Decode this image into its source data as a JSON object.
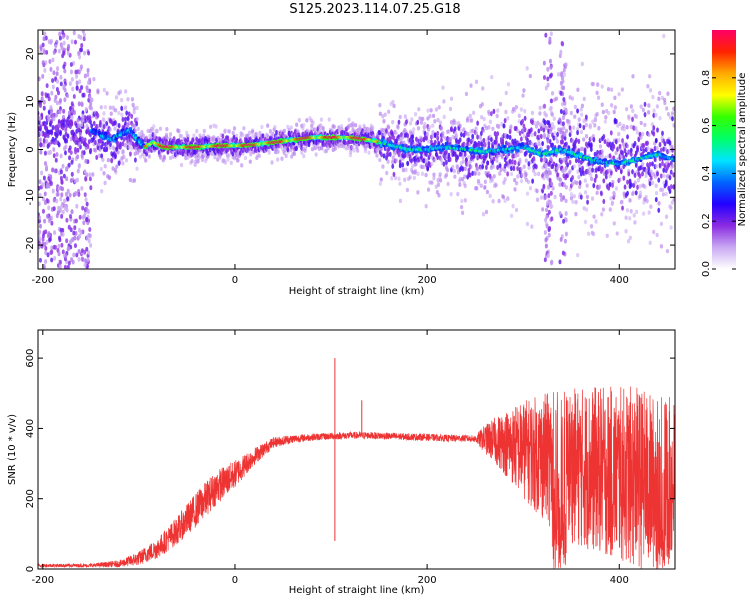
{
  "title": "S125.2023.114.07.25.G18",
  "chart_data": [
    {
      "type": "heatmap",
      "name": "spectrogram",
      "xlabel": "Height of straight line (km)",
      "ylabel": "Frequency (Hz)",
      "xlim": [
        -205,
        458
      ],
      "ylim": [
        -25,
        25
      ],
      "xticks": [
        -200,
        0,
        200,
        400
      ],
      "yticks": [
        -20,
        -10,
        0,
        10,
        20
      ],
      "colorbar": {
        "label": "Normalized spectral amplitude",
        "range": [
          0.0,
          1.0
        ],
        "ticks": [
          0.0,
          0.2,
          0.4,
          0.6,
          0.8
        ],
        "colormap": [
          "#ffffff",
          "#c9a8f2",
          "#8a2be2",
          "#2200ff",
          "#0066ff",
          "#00e5ff",
          "#00ff66",
          "#33ff00",
          "#ffff00",
          "#ffaa00",
          "#ff2200",
          "#ff0066"
        ]
      },
      "ridge": {
        "x": [
          -150,
          -130,
          -110,
          -95,
          -85,
          -75,
          -60,
          -40,
          -20,
          0,
          20,
          40,
          60,
          80,
          100,
          120,
          140,
          160,
          180,
          200,
          220,
          240,
          260,
          280,
          300,
          320,
          340,
          360,
          380,
          400,
          420,
          440,
          455
        ],
        "y": [
          4,
          2,
          4,
          0.5,
          1.5,
          0.5,
          0.5,
          0.5,
          0.8,
          0.8,
          1,
          1.5,
          2,
          2.5,
          2.5,
          2.5,
          2,
          1,
          0,
          0,
          0.5,
          0,
          -0.5,
          0,
          0.5,
          -1,
          0,
          -1.5,
          -2.5,
          -3,
          -2,
          -1,
          -2
        ]
      },
      "noise_regions": [
        {
          "x_range": [
            -205,
            -150
          ],
          "y_range": [
            -25,
            25
          ]
        },
        {
          "x_range": [
            322,
            330
          ],
          "y_range": [
            -25,
            25
          ]
        },
        {
          "x_range": [
            338,
            345
          ],
          "y_range": [
            -25,
            25
          ]
        }
      ]
    },
    {
      "type": "line",
      "name": "snr",
      "xlabel": "Height of straight line (km)",
      "ylabel": "SNR (10 * v/v)",
      "xlim": [
        -205,
        458
      ],
      "ylim": [
        0,
        680
      ],
      "xticks": [
        -200,
        0,
        200,
        400
      ],
      "yticks": [
        0,
        200,
        400,
        600
      ],
      "color": "#ee3333",
      "envelope": {
        "x": [
          -205,
          -150,
          -120,
          -100,
          -80,
          -60,
          -40,
          -20,
          0,
          20,
          40,
          60,
          80,
          100,
          120,
          140,
          160,
          180,
          200,
          220,
          240,
          250,
          260,
          280,
          300,
          320,
          340,
          360,
          380,
          400,
          420,
          440,
          458
        ],
        "mean": [
          10,
          10,
          15,
          30,
          60,
          110,
          170,
          230,
          270,
          320,
          360,
          370,
          375,
          378,
          380,
          380,
          378,
          376,
          375,
          372,
          372,
          370,
          370,
          360,
          340,
          320,
          300,
          290,
          280,
          270,
          260,
          240,
          250
        ],
        "spread": [
          5,
          5,
          10,
          20,
          30,
          40,
          50,
          50,
          40,
          25,
          15,
          12,
          10,
          10,
          10,
          10,
          10,
          10,
          10,
          10,
          10,
          10,
          40,
          90,
          140,
          180,
          210,
          230,
          240,
          250,
          260,
          250,
          240
        ]
      },
      "spikes": [
        {
          "x": 104,
          "y": 600
        },
        {
          "x": 104,
          "y": 80
        },
        {
          "x": 132,
          "y": 480
        }
      ]
    }
  ]
}
